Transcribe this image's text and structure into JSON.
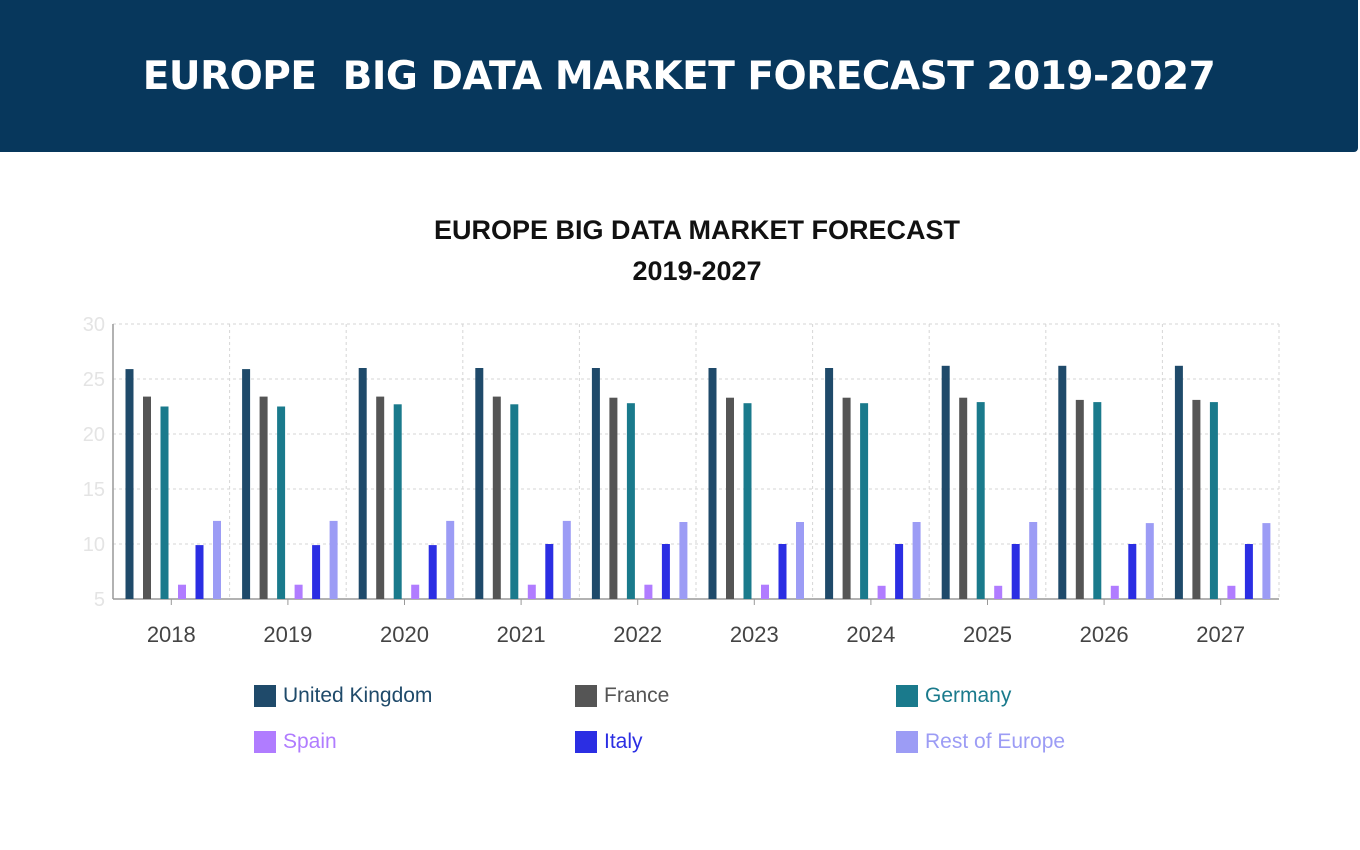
{
  "banner": {
    "title": "EUROPE  BIG DATA MARKET FORECAST 2019-2027"
  },
  "chart_data": {
    "type": "bar",
    "title_lines": [
      "EUROPE BIG DATA MARKET FORECAST",
      "2019-2027"
    ],
    "categories": [
      "2018",
      "2019",
      "2020",
      "2021",
      "2022",
      "2023",
      "2024",
      "2025",
      "2026",
      "2027"
    ],
    "ylim": [
      5,
      30
    ],
    "yticks": [
      "5",
      "10",
      "15",
      "20",
      "25",
      "30"
    ],
    "grid": true,
    "legend_position": "bottom",
    "series": [
      {
        "name": "United Kingdom",
        "color": "#1f4a6a",
        "values": [
          25.9,
          25.9,
          26.0,
          26.0,
          26.0,
          26.0,
          26.0,
          26.2,
          26.2,
          26.2
        ]
      },
      {
        "name": "France",
        "color": "#555555",
        "values": [
          23.4,
          23.4,
          23.4,
          23.4,
          23.3,
          23.3,
          23.3,
          23.3,
          23.1,
          23.1
        ]
      },
      {
        "name": "Germany",
        "color": "#1a7a8c",
        "values": [
          22.5,
          22.5,
          22.7,
          22.7,
          22.8,
          22.8,
          22.8,
          22.9,
          22.9,
          22.9
        ]
      },
      {
        "name": "Spain",
        "color": "#b07cff",
        "values": [
          6.3,
          6.3,
          6.3,
          6.3,
          6.3,
          6.3,
          6.2,
          6.2,
          6.2,
          6.2
        ]
      },
      {
        "name": "Italy",
        "color": "#2b2ee3",
        "values": [
          9.9,
          9.9,
          9.9,
          10.0,
          10.0,
          10.0,
          10.0,
          10.0,
          10.0,
          10.0
        ]
      },
      {
        "name": "Rest of Europe",
        "color": "#9c9cf5",
        "values": [
          12.1,
          12.1,
          12.1,
          12.1,
          12.0,
          12.0,
          12.0,
          12.0,
          11.9,
          11.9
        ]
      }
    ]
  }
}
